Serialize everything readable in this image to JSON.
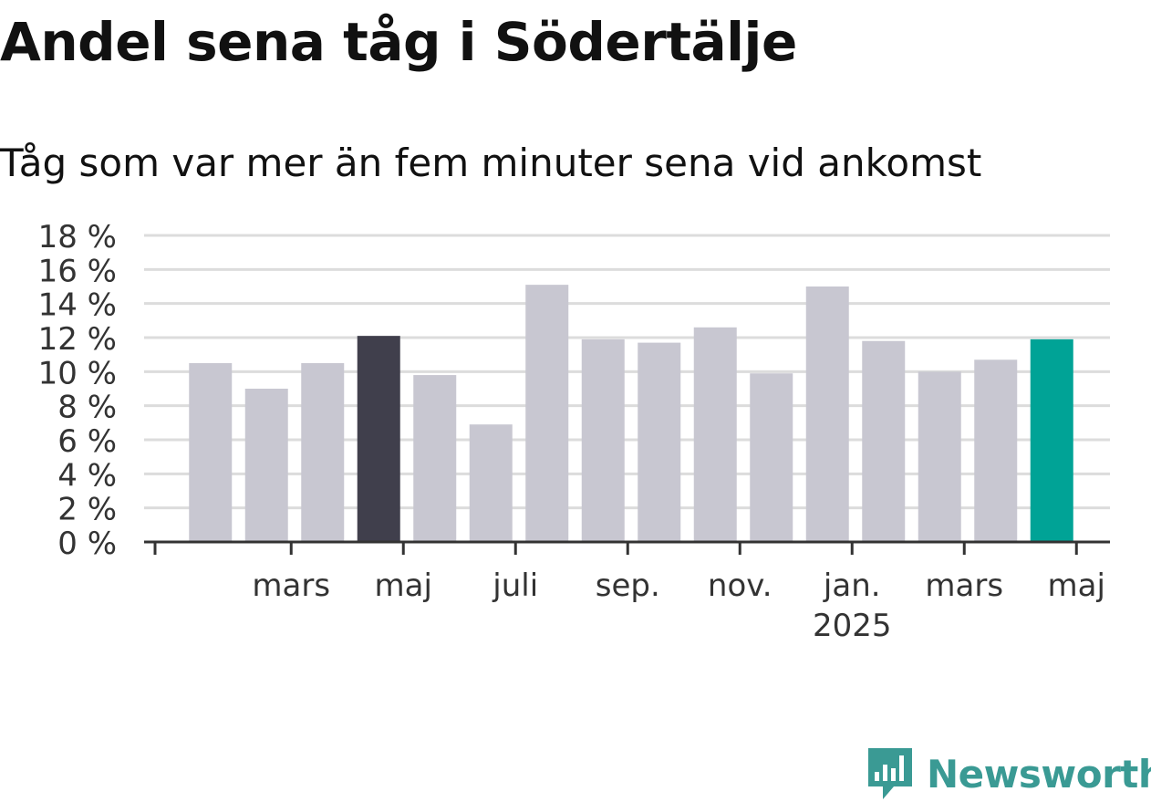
{
  "title": "Andel sena tåg i Södertälje",
  "subtitle": "Tåg som var mer än fem minuter sena vid ankomst",
  "brand": {
    "name": "Newsworthy",
    "color": "#3a9a94",
    "icon": "newsworthy-logo-icon"
  },
  "chart_data": {
    "type": "bar",
    "categories": [
      "2024-01",
      "2024-02",
      "2024-03",
      "2024-04",
      "2024-05",
      "2024-06",
      "2024-07",
      "2024-08",
      "2024-09",
      "2024-10",
      "2024-11",
      "2024-12",
      "2025-01",
      "2025-02",
      "2025-03",
      "2025-04",
      "2025-05"
    ],
    "values": [
      10.5,
      9.0,
      10.5,
      12.1,
      9.8,
      6.9,
      15.1,
      11.9,
      11.7,
      12.6,
      9.9,
      15.0,
      11.8,
      10.0,
      10.7,
      11.9,
      null
    ],
    "colors": {
      "default": "#c8c7d1",
      "highlight_dark": "#403f4c",
      "highlight_teal": "#00a396"
    },
    "highlight": {
      "dark_index": 3,
      "teal_index": 15
    },
    "ylim": [
      0,
      18
    ],
    "yticks": [
      "0 %",
      "2 %",
      "4 %",
      "6 %",
      "8 %",
      "10 %",
      "12 %",
      "14 %",
      "16 %",
      "18 %"
    ],
    "xticks": [
      {
        "label": "mars",
        "sub": "",
        "index": 1
      },
      {
        "label": "maj",
        "sub": "",
        "index": 3
      },
      {
        "label": "juli",
        "sub": "",
        "index": 5
      },
      {
        "label": "sep.",
        "sub": "",
        "index": 7
      },
      {
        "label": "nov.",
        "sub": "",
        "index": 9
      },
      {
        "label": "jan.",
        "sub": "2025",
        "index": 11
      },
      {
        "label": "mars",
        "sub": "",
        "index": 13
      },
      {
        "label": "maj",
        "sub": "",
        "index": 15
      }
    ],
    "grid": true,
    "xlabel": "",
    "ylabel": ""
  }
}
